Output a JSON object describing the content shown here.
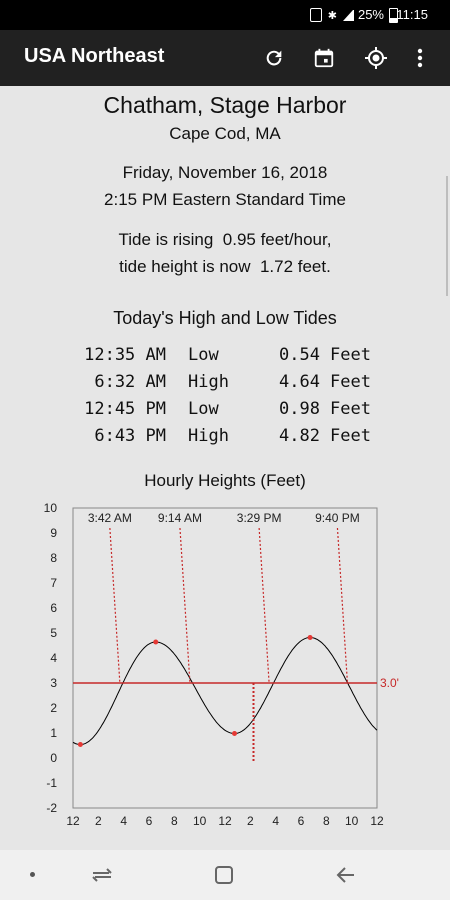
{
  "status_bar": {
    "battery": "25%",
    "time": "11:15"
  },
  "app_bar": {
    "title": "USA Northeast",
    "actions": [
      "refresh-icon",
      "calendar-icon",
      "location-icon",
      "more-vert-icon"
    ]
  },
  "location": {
    "name": "Chatham, Stage Harbor",
    "region": "Cape Cod, MA"
  },
  "datetime": {
    "date": "Friday, November 16, 2018",
    "time": "2:15 PM Eastern Standard Time"
  },
  "tide_status": {
    "rate_line": "Tide is rising  0.95 feet/hour,",
    "height_line": "tide height is now  1.72 feet."
  },
  "tides": {
    "title": "Today's High and Low Tides",
    "rows": [
      {
        "time": "12:35 AM",
        "type": "Low",
        "value": "0.54",
        "unit": "Feet"
      },
      {
        "time": "6:32 AM",
        "type": "High",
        "value": "4.64",
        "unit": "Feet"
      },
      {
        "time": "12:45 PM",
        "type": "Low",
        "value": "0.98",
        "unit": "Feet"
      },
      {
        "time": "6:43 PM",
        "type": "High",
        "value": "4.82",
        "unit": "Feet"
      }
    ]
  },
  "chart_data": {
    "type": "line",
    "title": "Hourly Heights (Feet)",
    "x_tick_labels": [
      "12",
      "2",
      "4",
      "6",
      "8",
      "10",
      "12",
      "2",
      "4",
      "6",
      "8",
      "10",
      "12"
    ],
    "x_range_hours": [
      0,
      24
    ],
    "y_range": [
      -2,
      10
    ],
    "y_ticks": [
      -2,
      -1,
      0,
      1,
      2,
      3,
      4,
      5,
      6,
      7,
      8,
      9,
      10
    ],
    "grid": false,
    "series": [
      {
        "extrema": [
          {
            "hour": 0.583,
            "value": 0.54
          },
          {
            "hour": 6.533,
            "value": 4.64
          },
          {
            "hour": 12.75,
            "value": 0.98
          },
          {
            "hour": 18.717,
            "value": 4.82
          }
        ]
      }
    ],
    "reference_line": {
      "value": 3.0,
      "label": "3.0'"
    },
    "current_time_hour": 14.25,
    "current_height": 1.72,
    "crossing_labels": [
      {
        "label": "3:42 AM",
        "hour": 3.7
      },
      {
        "label": "9:14 AM",
        "hour": 9.233
      },
      {
        "label": "3:29 PM",
        "hour": 15.483
      },
      {
        "label": "9:40 PM",
        "hour": 21.667
      }
    ],
    "colors": {
      "curve": "#000000",
      "reference": "#c62828",
      "markers": "#e53935"
    }
  }
}
